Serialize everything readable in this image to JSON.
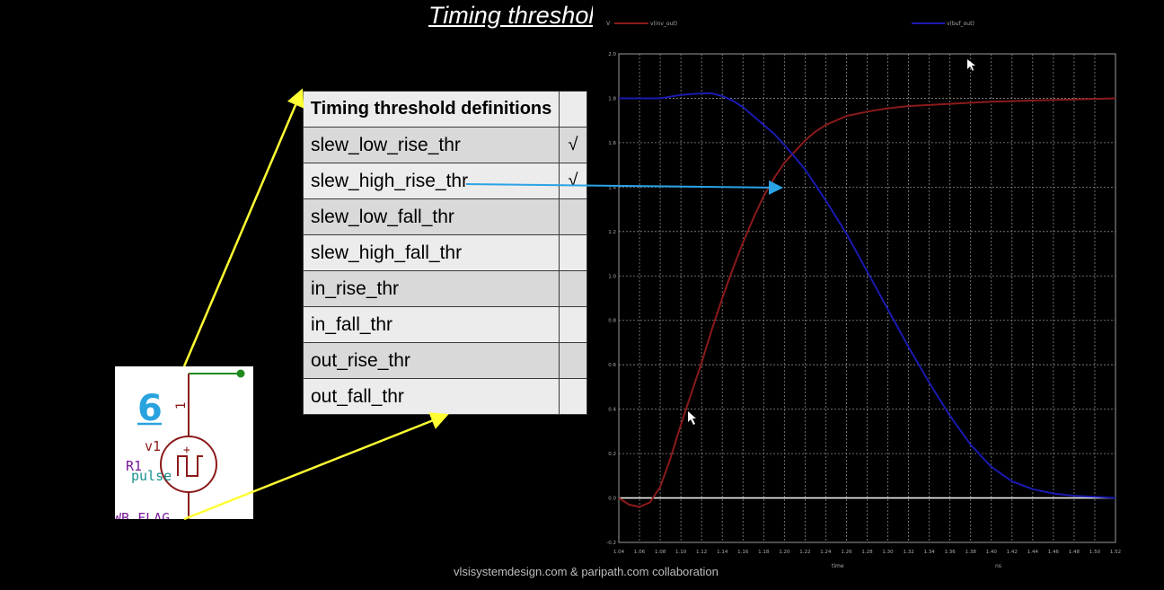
{
  "title": "Timing threshold definitions",
  "table": {
    "header": "Timing threshold definitions",
    "rows": [
      {
        "name": "slew_low_rise_thr",
        "check": "√"
      },
      {
        "name": "slew_high_rise_thr",
        "check": "√"
      },
      {
        "name": "slew_low_fall_thr",
        "check": ""
      },
      {
        "name": "slew_high_fall_thr",
        "check": ""
      },
      {
        "name": "in_rise_thr",
        "check": ""
      },
      {
        "name": "in_fall_thr",
        "check": ""
      },
      {
        "name": "out_rise_thr",
        "check": ""
      },
      {
        "name": "out_fall_thr",
        "check": ""
      }
    ]
  },
  "circuit": {
    "number": "6",
    "pin_label": "1",
    "source_name": "v1",
    "source_type": "pulse",
    "component": "R1",
    "flag": "WB_FLAG",
    "plus": "+"
  },
  "chart_data": {
    "type": "line",
    "series": [
      {
        "name": "v(inv_out)",
        "color": "#8b1a1a",
        "x": [
          1.04,
          1.05,
          1.06,
          1.07,
          1.08,
          1.09,
          1.1,
          1.11,
          1.12,
          1.13,
          1.14,
          1.15,
          1.16,
          1.17,
          1.18,
          1.19,
          1.2,
          1.21,
          1.22,
          1.23,
          1.24,
          1.26,
          1.28,
          1.3,
          1.32,
          1.34,
          1.36,
          1.38,
          1.4,
          1.44,
          1.48,
          1.52
        ],
        "y": [
          0.0,
          -0.03,
          -0.04,
          -0.02,
          0.05,
          0.18,
          0.33,
          0.47,
          0.61,
          0.76,
          0.9,
          1.03,
          1.15,
          1.26,
          1.36,
          1.44,
          1.51,
          1.56,
          1.61,
          1.65,
          1.68,
          1.72,
          1.74,
          1.755,
          1.765,
          1.77,
          1.775,
          1.78,
          1.785,
          1.79,
          1.795,
          1.8
        ]
      },
      {
        "name": "v(buf_out)",
        "color": "#1a1ab0",
        "x": [
          1.04,
          1.08,
          1.1,
          1.12,
          1.13,
          1.14,
          1.15,
          1.16,
          1.17,
          1.18,
          1.19,
          1.2,
          1.22,
          1.24,
          1.26,
          1.28,
          1.3,
          1.32,
          1.34,
          1.36,
          1.38,
          1.4,
          1.42,
          1.44,
          1.46,
          1.48,
          1.5,
          1.52
        ],
        "y": [
          1.8,
          1.8,
          1.815,
          1.822,
          1.822,
          1.81,
          1.79,
          1.76,
          1.72,
          1.68,
          1.64,
          1.59,
          1.48,
          1.34,
          1.19,
          1.02,
          0.85,
          0.68,
          0.52,
          0.37,
          0.24,
          0.14,
          0.075,
          0.04,
          0.02,
          0.01,
          0.005,
          0.0
        ]
      }
    ],
    "zero_line_color": "#ffffff",
    "x_ticks": [
      "1.04",
      "1.06",
      "1.08",
      "1.10",
      "1.12",
      "1.14",
      "1.16",
      "1.18",
      "1.20",
      "1.22",
      "1.24",
      "1.26",
      "1.28",
      "1.30",
      "1.32",
      "1.34",
      "1.36",
      "1.38",
      "1.40",
      "1.42",
      "1.44",
      "1.46",
      "1.48",
      "1.50",
      "1.52"
    ],
    "y_ticks": [
      "-0.2",
      "0.0",
      "0.2",
      "0.4",
      "0.6",
      "0.8",
      "1.0",
      "1.2",
      "1.4",
      "1.6",
      "1.8",
      "2.0"
    ],
    "xlim": [
      1.04,
      1.52
    ],
    "ylim": [
      -0.2,
      2.0
    ],
    "xlabel": "time",
    "xunit": "ns",
    "grid": true,
    "legend": "top",
    "y_axis_marker": "V"
  },
  "footer": "vlsisystemdesign.com & paripath.com collaboration",
  "colors": {
    "arrow_yellow": "#ffff33",
    "arrow_blue": "#2aa3e6",
    "background": "#000000"
  }
}
